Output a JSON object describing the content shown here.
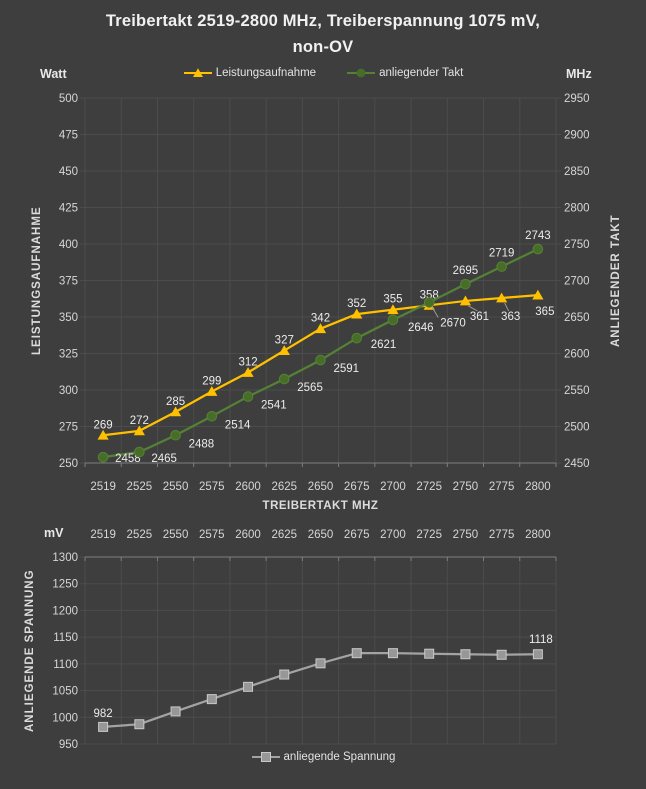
{
  "title": {
    "line1": "Treibertakt 2519-2800 MHz, Treiberspannung 1075 mV,",
    "line2": "non-OV"
  },
  "colors": {
    "background": "#3E3E3E",
    "gridline": "#4C4C4C",
    "axis_line": "#7E7E7E",
    "tick_text": "#D6D6D6",
    "title_text": "#F1F1F1",
    "data_label_text": "#ECECEC",
    "power_orange": "#FFC000",
    "clock_green": "#548235",
    "clock_marker_fill": "#476D29",
    "voltage_gray": "#A3A3A3",
    "voltage_marker_fill": "#979797",
    "voltage_marker_stroke": "#C9C9C9",
    "leader_line": "#9A9A9A"
  },
  "chart_data": [
    {
      "type": "line",
      "title": "Treibertakt 2519-2800 MHz, Treiberspannung 1075 mV, non-OV",
      "categories": [
        "2519",
        "2525",
        "2550",
        "2575",
        "2600",
        "2625",
        "2650",
        "2675",
        "2700",
        "2725",
        "2750",
        "2775",
        "2800"
      ],
      "xlabel": "TREIBERTAKT MHZ",
      "grid": true,
      "legend_position": "top",
      "axes": {
        "left": {
          "unit": "Watt",
          "title": "LEISTUNGSAUFNAHME",
          "min": 250,
          "max": 500,
          "step": 25
        },
        "right": {
          "unit": "MHz",
          "title": "ANLIEGENDER TAKT",
          "min": 2450,
          "max": 2950,
          "step": 50
        }
      },
      "series": [
        {
          "name": "Leistungsaufnahme",
          "axis": "left",
          "marker": "triangle",
          "values": [
            269,
            272,
            285,
            299,
            312,
            327,
            342,
            352,
            355,
            358,
            361,
            363,
            365
          ]
        },
        {
          "name": "anliegender Takt",
          "axis": "right",
          "marker": "circle",
          "values": [
            2458,
            2465,
            2488,
            2514,
            2541,
            2565,
            2591,
            2621,
            2646,
            2670,
            2695,
            2719,
            2743
          ]
        }
      ]
    },
    {
      "type": "line",
      "categories": [
        "2519",
        "2525",
        "2550",
        "2575",
        "2600",
        "2625",
        "2650",
        "2675",
        "2700",
        "2725",
        "2750",
        "2775",
        "2800"
      ],
      "grid": true,
      "legend_position": "bottom",
      "axes": {
        "left": {
          "unit": "mV",
          "title": "ANLIEGENDE SPANNUNG",
          "min": 950,
          "max": 1300,
          "step": 50
        }
      },
      "series": [
        {
          "name": "anliegende Spannung",
          "axis": "left",
          "marker": "square",
          "values": [
            982,
            987,
            1011,
            1034,
            1057,
            1080,
            1101,
            1120,
            1120,
            1119,
            1118,
            1117,
            1118
          ],
          "point_labels": {
            "0": "982",
            "12": "1118"
          }
        }
      ]
    }
  ]
}
